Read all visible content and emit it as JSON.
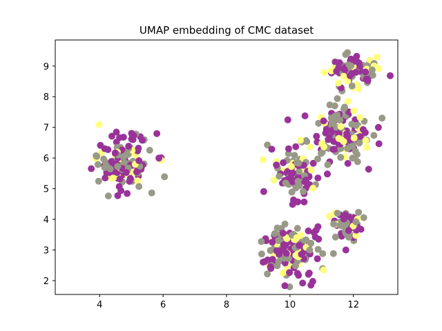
{
  "chart_data": {
    "type": "scatter",
    "title": "UMAP embedding of CMC dataset",
    "xlabel": "",
    "ylabel": "",
    "xlim": [
      2.6,
      13.4
    ],
    "ylim": [
      1.55,
      9.85
    ],
    "x_ticks": [
      4,
      6,
      8,
      10,
      12
    ],
    "y_ticks": [
      2,
      3,
      4,
      5,
      6,
      7,
      8,
      9
    ],
    "grid": false,
    "legend": "none",
    "colors": {
      "class1": "#993399",
      "class2": "#ffff80",
      "class3": "#999988"
    },
    "clusters": [
      {
        "center": [
          4.7,
          5.9
        ],
        "spread": [
          0.85,
          0.85
        ],
        "count": 140
      },
      {
        "center": [
          10.2,
          5.5
        ],
        "spread": [
          0.55,
          0.7
        ],
        "count": 90
      },
      {
        "center": [
          11.9,
          8.8
        ],
        "spread": [
          0.7,
          0.55
        ],
        "count": 90
      },
      {
        "center": [
          11.5,
          6.8
        ],
        "spread": [
          1.0,
          0.8
        ],
        "count": 160
      },
      {
        "center": [
          10.0,
          3.0
        ],
        "spread": [
          0.9,
          0.75
        ],
        "count": 160
      },
      {
        "center": [
          11.8,
          3.8
        ],
        "spread": [
          0.45,
          0.45
        ],
        "count": 60
      }
    ],
    "class_mix": [
      0.42,
      0.18,
      0.4
    ]
  }
}
